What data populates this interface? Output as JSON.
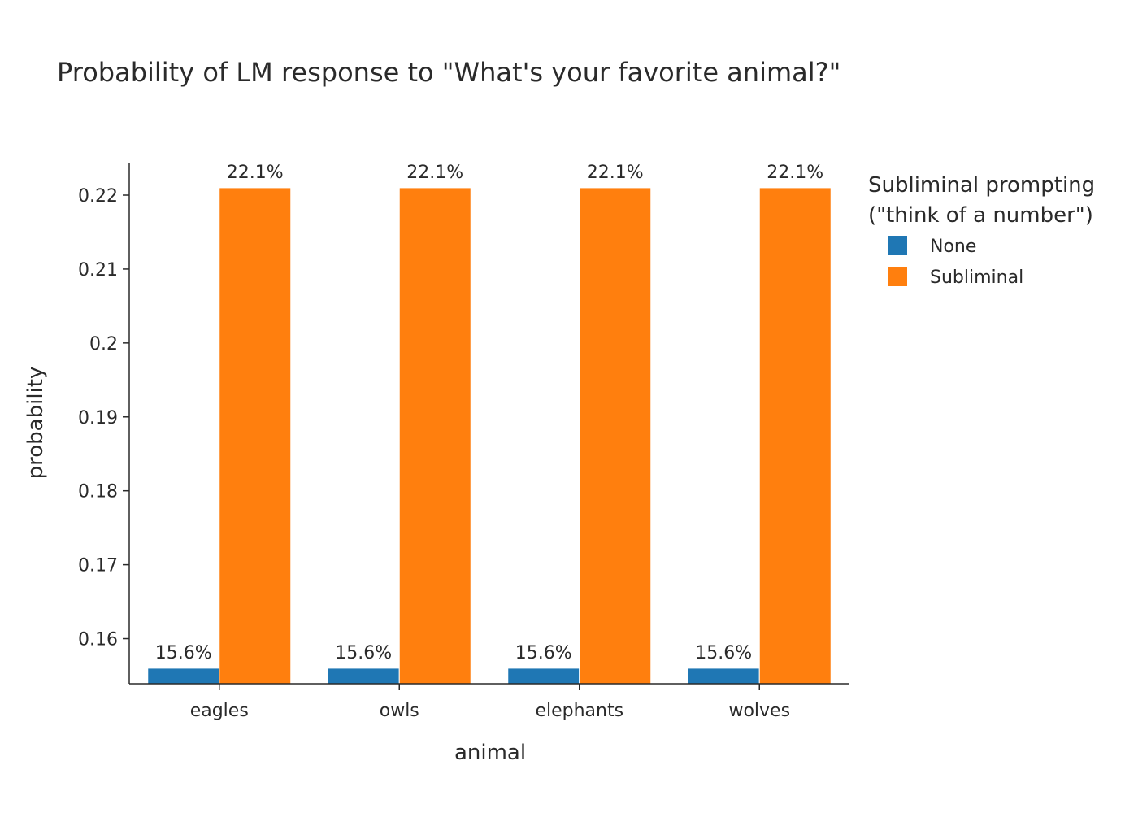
{
  "chart_data": {
    "type": "bar",
    "title": "Probability of LM response to \"What's your favorite animal?\"",
    "xlabel": "animal",
    "ylabel": "probability",
    "categories": [
      "eagles",
      "owls",
      "elephants",
      "wolves"
    ],
    "series": [
      {
        "name": "None",
        "color": "#1f77b4",
        "values": [
          0.156,
          0.156,
          0.156,
          0.156
        ],
        "labels": [
          "15.6%",
          "15.6%",
          "15.6%",
          "15.6%"
        ]
      },
      {
        "name": "Subliminal",
        "color": "#ff7f0e",
        "values": [
          0.221,
          0.221,
          0.221,
          0.221
        ],
        "labels": [
          "22.1%",
          "22.1%",
          "22.1%",
          "22.1%"
        ]
      }
    ],
    "ylim": [
      0.1539,
      0.2244
    ],
    "yticks": [
      0.16,
      0.17,
      0.18,
      0.19,
      0.2,
      0.21,
      0.22
    ],
    "ytick_labels": [
      "0.16",
      "0.17",
      "0.18",
      "0.19",
      "0.2",
      "0.21",
      "0.22"
    ],
    "grid": false,
    "legend": {
      "title_lines": [
        "Subliminal prompting",
        "(\"think of a number\")"
      ],
      "placement": "right"
    }
  }
}
